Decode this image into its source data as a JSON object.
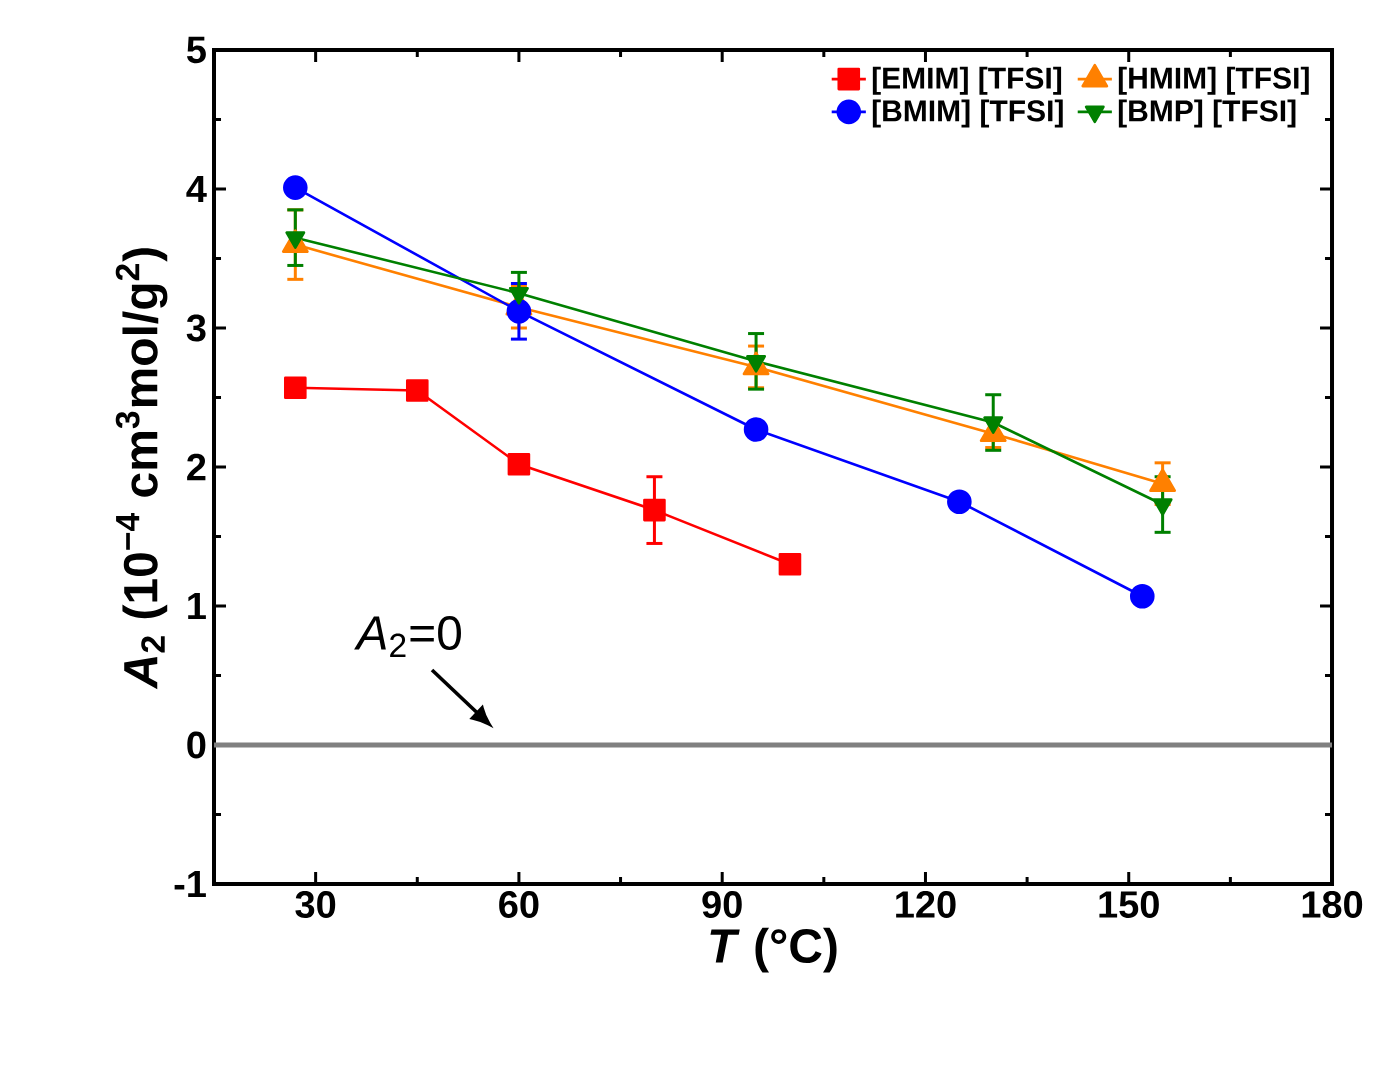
{
  "chart_data": {
    "type": "line",
    "xlabel": "*T* (°C)",
    "ylabel": "*A*$_{2}$ (10$^{−4}$ cm$^{3}$mol/g$^{2}$)",
    "xlim": [
      15,
      180
    ],
    "xticks": [
      30,
      60,
      90,
      120,
      150,
      180
    ],
    "ylim": [
      -1,
      5
    ],
    "yticks": [
      -1,
      0,
      1,
      2,
      3,
      4,
      5
    ],
    "legend": "top right",
    "grid": false,
    "line_style": "solid",
    "ref_lines": [
      {
        "axis": "y",
        "value": 0,
        "label": "*A*$_{2}$=0",
        "color": "#808080"
      }
    ],
    "series": [
      {
        "name": "[EMIM] [TFSI]",
        "color": "#ff0000",
        "marker": "square",
        "x": [
          27,
          45,
          60,
          80,
          100
        ],
        "values": [
          2.57,
          2.55,
          2.02,
          1.69,
          1.3
        ],
        "errors": [
          null,
          null,
          null,
          0.24,
          null
        ]
      },
      {
        "name": "[HMIM] [TFSI]",
        "color": "#ff8000",
        "marker": "triangle",
        "x": [
          27,
          60,
          95,
          130,
          155
        ],
        "values": [
          3.6,
          3.15,
          2.72,
          2.24,
          1.88
        ],
        "errors": [
          0.25,
          0.15,
          0.15,
          0.1,
          0.15
        ]
      },
      {
        "name": "[BMIM] [TFSI]",
        "color": "#0000ff",
        "marker": "circle",
        "x": [
          27,
          60,
          95,
          125,
          152
        ],
        "values": [
          4.01,
          3.12,
          2.27,
          1.75,
          1.07
        ],
        "errors": [
          null,
          0.2,
          null,
          null,
          null
        ]
      },
      {
        "name": "[BMP] [TFSI]",
        "color": "#008000",
        "marker": "triangle down",
        "x": [
          27,
          60,
          95,
          130,
          155
        ],
        "values": [
          3.65,
          3.25,
          2.76,
          2.32,
          1.73
        ],
        "errors": [
          0.2,
          0.15,
          0.2,
          0.2,
          0.2
        ]
      }
    ]
  }
}
